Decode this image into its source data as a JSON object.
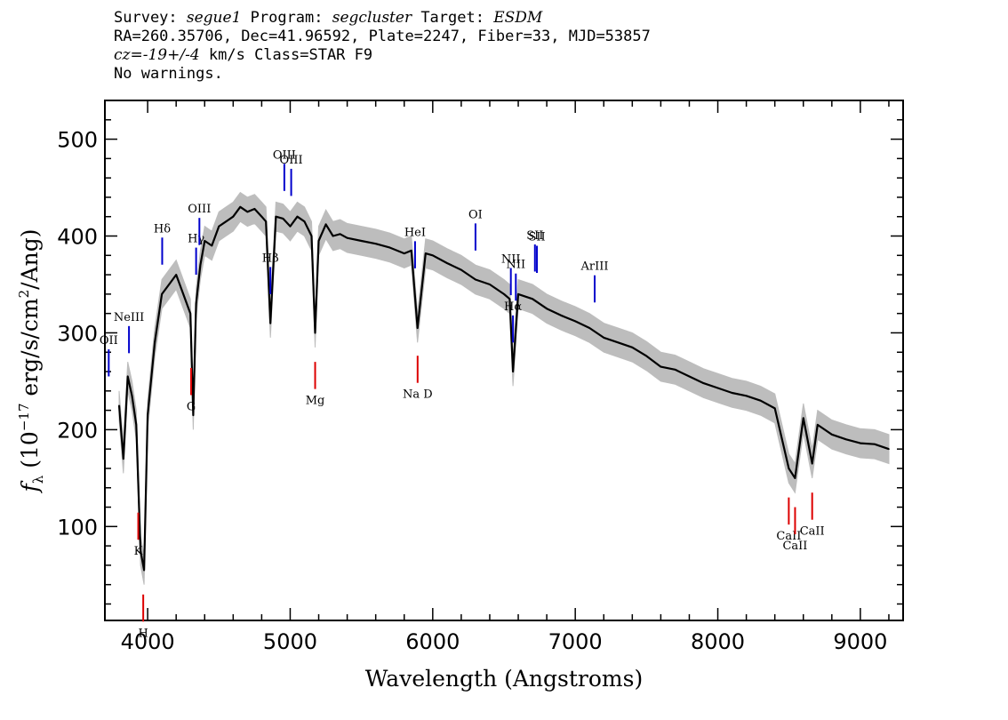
{
  "header": {
    "line1_prefix": "Survey: ",
    "survey": "segue1",
    "line1_mid": " Program: ",
    "program": "segcluster",
    "line1_mid2": " Target: ",
    "target": "ESDM",
    "line2": "RA=260.35706, Dec=41.96592, Plate=2247, Fiber=33, MJD=53857",
    "cz_prefix": "cz=",
    "cz_value": "-19+/-4",
    "cz_suffix": " km/s Class=STAR F9",
    "line4": "No warnings."
  },
  "colors": {
    "spectrum": "#000000",
    "error_band": "#bdbdbd",
    "emission": "#0000cc",
    "absorption": "#dd0000"
  },
  "chart_data": {
    "type": "line",
    "xlabel": "Wavelength (Angstroms)",
    "ylabel": "f_λ (10^-17 erg/s/cm^2/Ang)",
    "xlim": [
      3700,
      9300
    ],
    "ylim": [
      3,
      540
    ],
    "xticks": [
      4000,
      5000,
      6000,
      7000,
      8000,
      9000
    ],
    "yticks": [
      100,
      200,
      300,
      400,
      500
    ],
    "series": [
      {
        "x": [
          3800,
          3830,
          3860,
          3890,
          3920,
          3950,
          3975,
          4000,
          4050,
          4100,
          4150,
          4200,
          4250,
          4300,
          4320,
          4340,
          4370,
          4400,
          4450,
          4500,
          4550,
          4600,
          4650,
          4700,
          4750,
          4800,
          4830,
          4861,
          4900,
          4950,
          5000,
          5050,
          5100,
          5150,
          5175,
          5200,
          5250,
          5300,
          5350,
          5400,
          5500,
          5600,
          5700,
          5800,
          5850,
          5893,
          5950,
          6000,
          6100,
          6200,
          6300,
          6400,
          6500,
          6540,
          6563,
          6600,
          6700,
          6800,
          6900,
          7000,
          7100,
          7200,
          7300,
          7400,
          7500,
          7600,
          7700,
          7800,
          7900,
          8000,
          8100,
          8200,
          8300,
          8400,
          8498,
          8542,
          8600,
          8662,
          8700,
          8800,
          8900,
          9000,
          9100,
          9200
        ],
        "values": [
          225,
          170,
          255,
          235,
          205,
          75,
          55,
          215,
          290,
          340,
          350,
          360,
          340,
          320,
          215,
          330,
          370,
          395,
          390,
          410,
          415,
          420,
          430,
          425,
          428,
          420,
          415,
          310,
          420,
          418,
          410,
          420,
          415,
          400,
          300,
          395,
          412,
          400,
          402,
          398,
          395,
          392,
          388,
          382,
          385,
          305,
          382,
          380,
          372,
          365,
          355,
          350,
          340,
          335,
          260,
          340,
          335,
          325,
          318,
          312,
          305,
          295,
          290,
          285,
          276,
          265,
          262,
          255,
          248,
          243,
          238,
          235,
          230,
          222,
          160,
          150,
          212,
          165,
          205,
          195,
          190,
          186,
          185,
          180
        ]
      }
    ],
    "error_band_halfwidth": 15,
    "emission_lines": [
      {
        "label": "OII",
        "x": 3727
      },
      {
        "label": "NeIII",
        "x": 3869
      },
      {
        "label": "Hδ",
        "x": 4102
      },
      {
        "label": "Hγ",
        "x": 4340
      },
      {
        "label": "OIII",
        "x": 4363
      },
      {
        "label": "Hβ",
        "x": 4861
      },
      {
        "label": "OIII",
        "x": 4959
      },
      {
        "label": "OIII",
        "x": 5007
      },
      {
        "label": "HeI",
        "x": 5876
      },
      {
        "label": "OI",
        "x": 6300
      },
      {
        "label": "NII",
        "x": 6548
      },
      {
        "label": "Hα",
        "x": 6563
      },
      {
        "label": "NII",
        "x": 6583
      },
      {
        "label": "SII",
        "x": 6717
      },
      {
        "label": "SII",
        "x": 6731
      },
      {
        "label": "ArIII",
        "x": 7136
      }
    ],
    "absorption_lines": [
      {
        "label": "K",
        "x": 3934
      },
      {
        "label": "H",
        "x": 3969
      },
      {
        "label": "G",
        "x": 4305
      },
      {
        "label": "Mg",
        "x": 5175
      },
      {
        "label": "Na D",
        "x": 5894
      },
      {
        "label": "CaII",
        "x": 8498
      },
      {
        "label": "CaII",
        "x": 8542
      },
      {
        "label": "CaII",
        "x": 8662
      }
    ]
  }
}
